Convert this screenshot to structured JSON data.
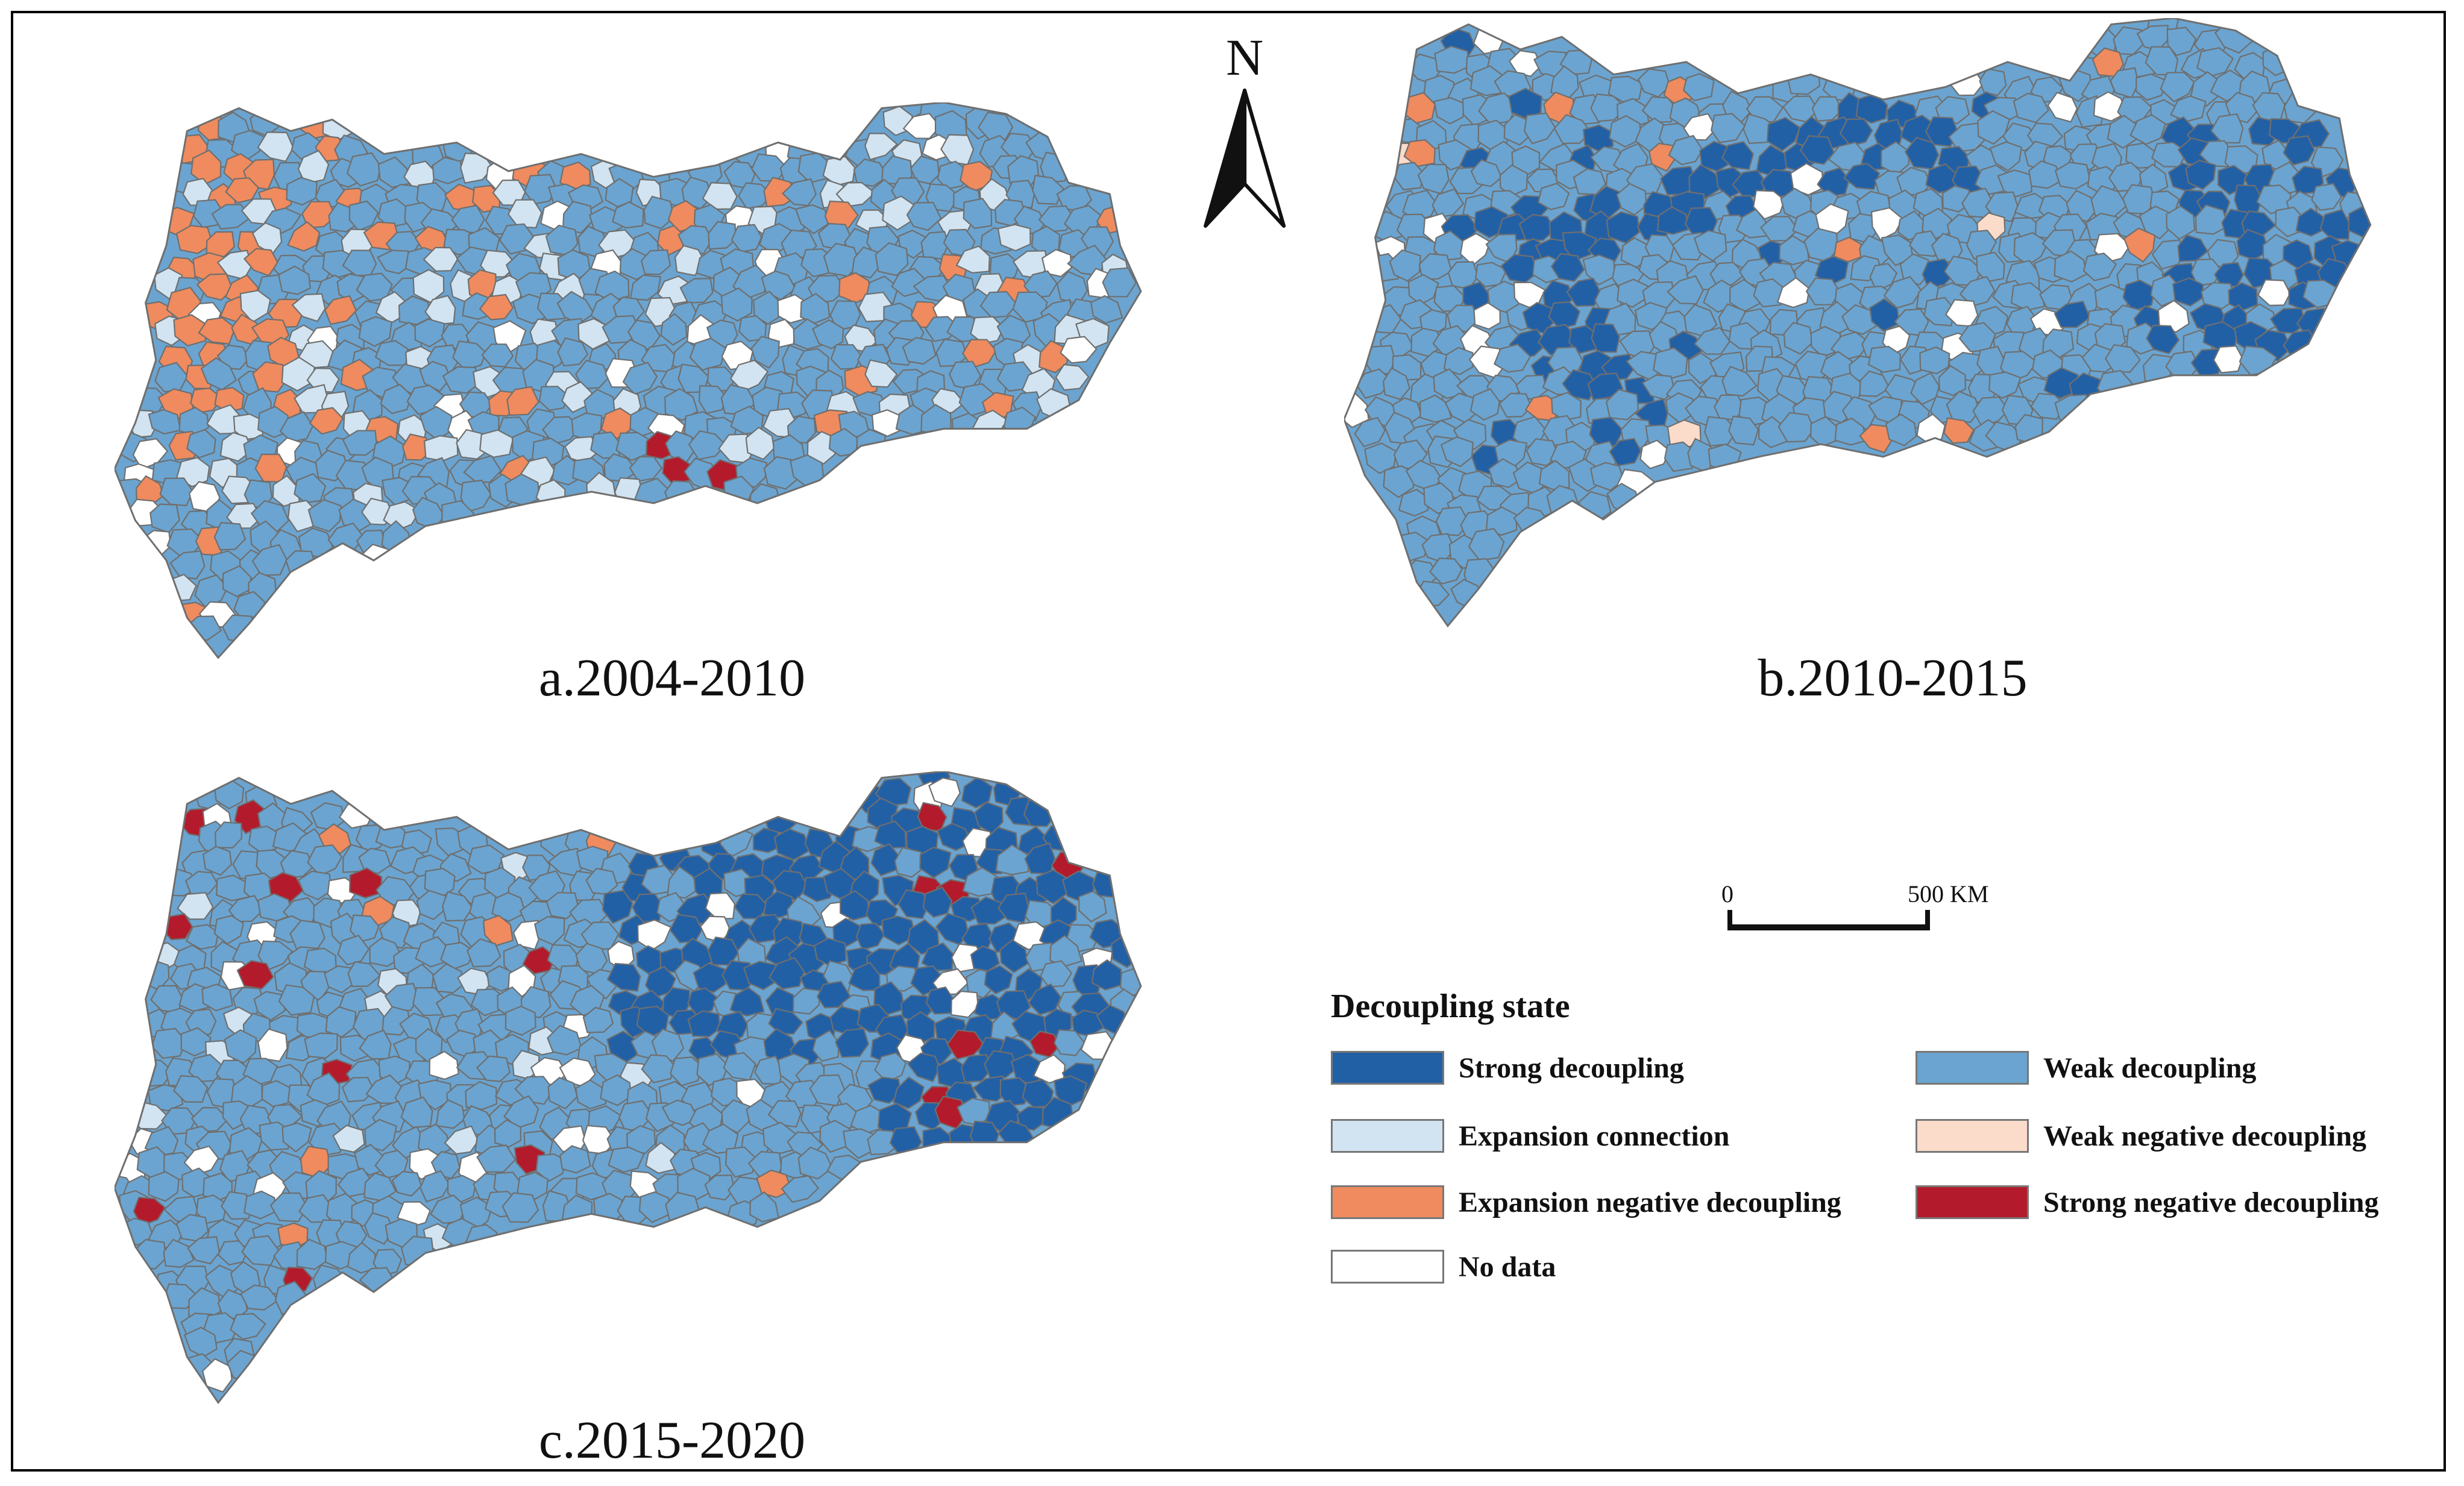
{
  "panels": [
    {
      "label": "a.2004-2010",
      "scheme": "a"
    },
    {
      "label": "b.2010-2015",
      "scheme": "b"
    },
    {
      "label": "c.2015-2020",
      "scheme": "c"
    }
  ],
  "north_arrow": {
    "letter": "N"
  },
  "scale_bar": {
    "start": "0",
    "end": "500 KM"
  },
  "legend": {
    "title": "Decoupling state",
    "items": [
      {
        "label": "Strong decoupling",
        "color": "#2260a6"
      },
      {
        "label": "Weak decoupling",
        "color": "#6ba4d0"
      },
      {
        "label": "Expansion connection",
        "color": "#d2e4f1"
      },
      {
        "label": "Weak negative decoupling",
        "color": "#fbdccb"
      },
      {
        "label": "Expansion negative decoupling",
        "color": "#ef8b5e"
      },
      {
        "label": "Strong negative decoupling",
        "color": "#b31b2c"
      },
      {
        "label": "No data",
        "color": "#ffffff"
      }
    ]
  },
  "colors": {
    "boundary": "#6f6f6f",
    "frame": "#000000"
  }
}
